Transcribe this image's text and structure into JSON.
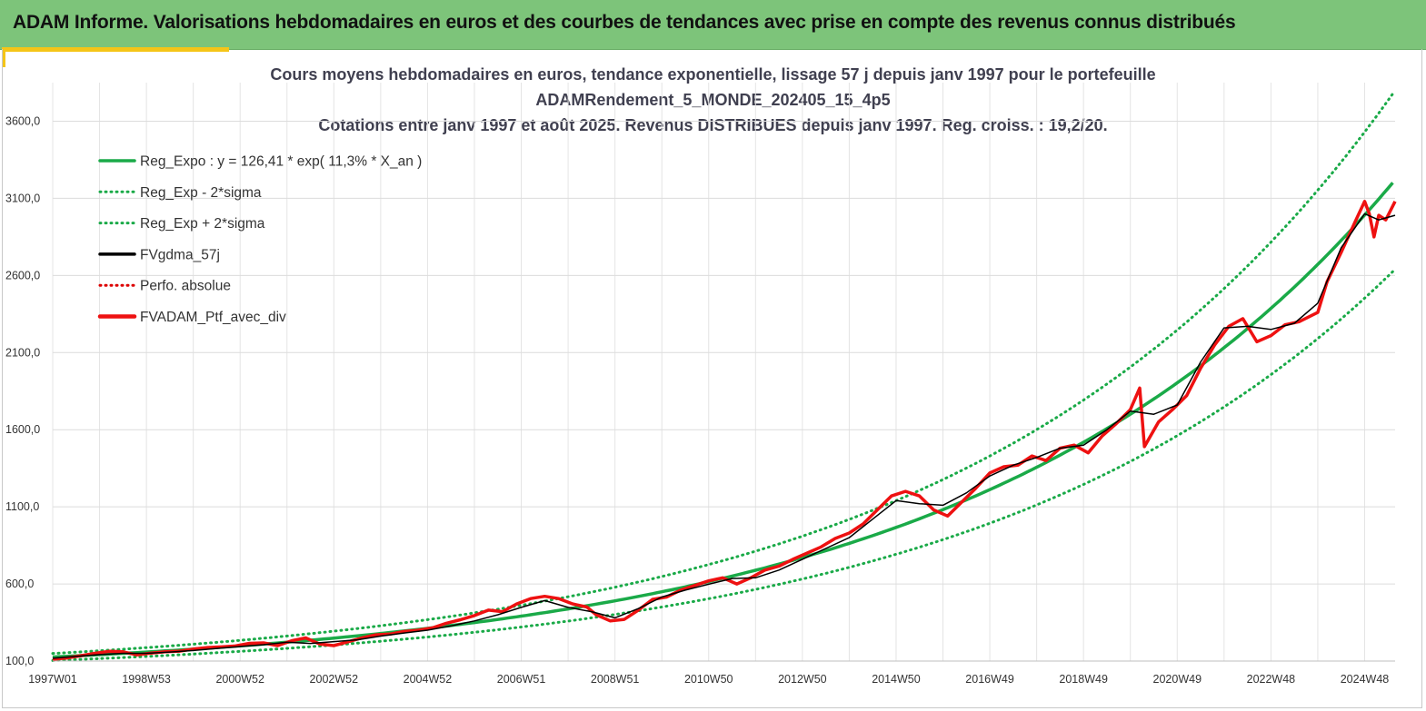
{
  "header": {
    "title": "ADAM Informe. Valorisations hebdomadaires en euros et des courbes de tendances avec prise en compte des revenus connus distribués",
    "banner_color": "#7dc47a",
    "accent_color": "#f5c518"
  },
  "chart_data": {
    "type": "line",
    "title": [
      "Cours moyens hebdomadaires  en euros, tendance exponentielle, lissage 57 j depuis janv 1997 pour le portefeuille",
      "ADAMRendement_5_MONDE_202405_15_4p5",
      "Cotations entre janv 1997 et août 2025. Revenus DISTRIBUES depuis janv 1997. Reg. croiss. : 19,2/20."
    ],
    "xlabel": "",
    "ylabel": "",
    "x_range": [
      1997.0,
      2025.65
    ],
    "ylim": [
      100,
      3850
    ],
    "yticks": [
      100,
      600,
      1100,
      1600,
      2100,
      2600,
      3100,
      3600
    ],
    "ytick_labels": [
      "100,0",
      "600,0",
      "1100,0",
      "1600,0",
      "2100,0",
      "2600,0",
      "3100,0",
      "3600,0"
    ],
    "xticks": [
      1997.0,
      1999.0,
      2001.0,
      2003.0,
      2005.0,
      2007.0,
      2009.0,
      2011.0,
      2013.0,
      2015.0,
      2017.0,
      2019.0,
      2021.0,
      2023.0,
      2025.0
    ],
    "xtick_labels": [
      "1997W01",
      "1998W53",
      "2000W52",
      "2002W52",
      "2004W52",
      "2006W51",
      "2008W51",
      "2010W50",
      "2012W50",
      "2014W50",
      "2016W49",
      "2018W49",
      "2020W49",
      "2022W48",
      "2024W48"
    ],
    "grid": true,
    "legend_position": "top-left",
    "regression": {
      "a": 126.41,
      "rate": 0.113,
      "band_factor_low": 0.82,
      "band_factor_high": 1.18
    },
    "series": [
      {
        "name": "Reg_Expo : y = 126,41 * exp( 11,3% *  X_an )",
        "color": "#1aaa48",
        "style": "solid",
        "points": []
      },
      {
        "name": "Reg_Exp - 2*sigma",
        "color": "#1aaa48",
        "style": "dotted",
        "points": []
      },
      {
        "name": "Reg_Exp + 2*sigma",
        "color": "#1aaa48",
        "style": "dotted",
        "points": []
      },
      {
        "name": "FVgdma_57j",
        "color": "#000000",
        "style": "solid",
        "points": [
          [
            1997.0,
            118
          ],
          [
            1997.5,
            130
          ],
          [
            1998.0,
            142
          ],
          [
            1998.5,
            150
          ],
          [
            1999.0,
            150
          ],
          [
            1999.5,
            158
          ],
          [
            2000.0,
            168
          ],
          [
            2000.5,
            182
          ],
          [
            2001.0,
            194
          ],
          [
            2001.5,
            206
          ],
          [
            2002.0,
            222
          ],
          [
            2002.5,
            214
          ],
          [
            2003.0,
            226
          ],
          [
            2003.5,
            238
          ],
          [
            2004.0,
            262
          ],
          [
            2004.5,
            282
          ],
          [
            2005.0,
            300
          ],
          [
            2005.5,
            328
          ],
          [
            2006.0,
            360
          ],
          [
            2006.5,
            400
          ],
          [
            2007.0,
            448
          ],
          [
            2007.5,
            492
          ],
          [
            2008.0,
            448
          ],
          [
            2008.5,
            420
          ],
          [
            2009.0,
            380
          ],
          [
            2009.5,
            440
          ],
          [
            2010.0,
            515
          ],
          [
            2010.5,
            560
          ],
          [
            2011.0,
            598
          ],
          [
            2011.5,
            635
          ],
          [
            2012.0,
            640
          ],
          [
            2012.5,
            690
          ],
          [
            2013.0,
            760
          ],
          [
            2013.5,
            830
          ],
          [
            2014.0,
            900
          ],
          [
            2014.5,
            1020
          ],
          [
            2015.0,
            1140
          ],
          [
            2015.5,
            1120
          ],
          [
            2016.0,
            1110
          ],
          [
            2016.5,
            1190
          ],
          [
            2017.0,
            1300
          ],
          [
            2017.5,
            1370
          ],
          [
            2018.0,
            1420
          ],
          [
            2018.5,
            1480
          ],
          [
            2019.0,
            1500
          ],
          [
            2019.5,
            1600
          ],
          [
            2020.0,
            1720
          ],
          [
            2020.5,
            1700
          ],
          [
            2021.0,
            1760
          ],
          [
            2021.5,
            2040
          ],
          [
            2022.0,
            2260
          ],
          [
            2022.5,
            2270
          ],
          [
            2023.0,
            2250
          ],
          [
            2023.5,
            2290
          ],
          [
            2024.0,
            2420
          ],
          [
            2024.5,
            2780
          ],
          [
            2025.0,
            3000
          ],
          [
            2025.3,
            2960
          ],
          [
            2025.65,
            2990
          ]
        ]
      },
      {
        "name": "Perfo. absolue",
        "color": "#dd0000",
        "style": "dotted",
        "points": []
      },
      {
        "name": "FVADAM_Ptf_avec_div",
        "color": "#ee1111",
        "style": "solid",
        "points": [
          [
            1997.0,
            112
          ],
          [
            1997.3,
            120
          ],
          [
            1997.6,
            135
          ],
          [
            1997.9,
            150
          ],
          [
            1998.2,
            163
          ],
          [
            1998.5,
            160
          ],
          [
            1998.8,
            140
          ],
          [
            1999.1,
            152
          ],
          [
            1999.4,
            160
          ],
          [
            1999.7,
            164
          ],
          [
            2000.0,
            178
          ],
          [
            2000.3,
            188
          ],
          [
            2000.6,
            192
          ],
          [
            2000.9,
            198
          ],
          [
            2001.2,
            215
          ],
          [
            2001.5,
            218
          ],
          [
            2001.8,
            200
          ],
          [
            2002.1,
            232
          ],
          [
            2002.4,
            250
          ],
          [
            2002.7,
            210
          ],
          [
            2003.0,
            200
          ],
          [
            2003.3,
            225
          ],
          [
            2003.6,
            250
          ],
          [
            2003.9,
            270
          ],
          [
            2004.2,
            275
          ],
          [
            2004.5,
            292
          ],
          [
            2004.8,
            300
          ],
          [
            2005.1,
            315
          ],
          [
            2005.4,
            345
          ],
          [
            2005.7,
            368
          ],
          [
            2006.0,
            395
          ],
          [
            2006.3,
            430
          ],
          [
            2006.6,
            420
          ],
          [
            2006.9,
            470
          ],
          [
            2007.2,
            505
          ],
          [
            2007.5,
            520
          ],
          [
            2007.8,
            505
          ],
          [
            2008.1,
            470
          ],
          [
            2008.4,
            450
          ],
          [
            2008.6,
            400
          ],
          [
            2008.9,
            360
          ],
          [
            2009.2,
            370
          ],
          [
            2009.5,
            430
          ],
          [
            2009.8,
            500
          ],
          [
            2010.1,
            515
          ],
          [
            2010.4,
            560
          ],
          [
            2010.7,
            590
          ],
          [
            2011.0,
            620
          ],
          [
            2011.3,
            640
          ],
          [
            2011.6,
            600
          ],
          [
            2011.9,
            640
          ],
          [
            2012.2,
            690
          ],
          [
            2012.5,
            715
          ],
          [
            2012.8,
            760
          ],
          [
            2013.1,
            800
          ],
          [
            2013.4,
            840
          ],
          [
            2013.7,
            895
          ],
          [
            2014.0,
            930
          ],
          [
            2014.3,
            990
          ],
          [
            2014.6,
            1080
          ],
          [
            2014.9,
            1170
          ],
          [
            2015.2,
            1200
          ],
          [
            2015.5,
            1170
          ],
          [
            2015.8,
            1080
          ],
          [
            2016.1,
            1040
          ],
          [
            2016.4,
            1130
          ],
          [
            2016.7,
            1220
          ],
          [
            2017.0,
            1320
          ],
          [
            2017.3,
            1360
          ],
          [
            2017.6,
            1370
          ],
          [
            2017.9,
            1430
          ],
          [
            2018.2,
            1400
          ],
          [
            2018.5,
            1480
          ],
          [
            2018.8,
            1500
          ],
          [
            2019.1,
            1450
          ],
          [
            2019.4,
            1560
          ],
          [
            2019.7,
            1640
          ],
          [
            2020.0,
            1730
          ],
          [
            2020.2,
            1870
          ],
          [
            2020.3,
            1490
          ],
          [
            2020.6,
            1650
          ],
          [
            2020.9,
            1730
          ],
          [
            2021.2,
            1820
          ],
          [
            2021.5,
            2000
          ],
          [
            2021.8,
            2150
          ],
          [
            2022.1,
            2270
          ],
          [
            2022.4,
            2320
          ],
          [
            2022.7,
            2170
          ],
          [
            2023.0,
            2210
          ],
          [
            2023.3,
            2280
          ],
          [
            2023.6,
            2300
          ],
          [
            2024.0,
            2360
          ],
          [
            2024.2,
            2560
          ],
          [
            2024.5,
            2750
          ],
          [
            2024.8,
            2950
          ],
          [
            2025.0,
            3080
          ],
          [
            2025.1,
            3000
          ],
          [
            2025.2,
            2850
          ],
          [
            2025.3,
            2990
          ],
          [
            2025.45,
            2960
          ],
          [
            2025.65,
            3080
          ]
        ]
      }
    ]
  }
}
